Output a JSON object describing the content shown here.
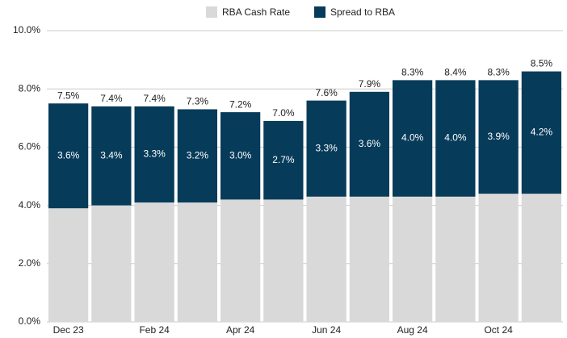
{
  "chart_data": {
    "type": "stacked_bar",
    "categories": [
      "Dec 23",
      null,
      "Feb 24",
      null,
      "Apr 24",
      null,
      "Jun 24",
      null,
      "Aug 24",
      null,
      "Oct 24",
      null
    ],
    "series": [
      {
        "name": "RBA Cash Rate",
        "color": "#d9d9d9",
        "values": [
          3.9,
          4.0,
          4.1,
          4.1,
          4.2,
          4.2,
          4.3,
          4.3,
          4.3,
          4.3,
          4.4,
          4.4
        ]
      },
      {
        "name": "Spread to RBA",
        "color": "#073b5a",
        "values": [
          3.6,
          3.4,
          3.3,
          3.2,
          3.0,
          2.7,
          3.3,
          3.6,
          4.0,
          4.0,
          3.9,
          4.2
        ],
        "value_labels": [
          "3.6%",
          "3.4%",
          "3.3%",
          "3.2%",
          "3.0%",
          "2.7%",
          "3.3%",
          "3.6%",
          "4.0%",
          "4.0%",
          "3.9%",
          "4.2%"
        ]
      }
    ],
    "total_labels": [
      "7.5%",
      "7.4%",
      "7.4%",
      "7.3%",
      "7.2%",
      "7.0%",
      "7.6%",
      "7.9%",
      "8.3%",
      "8.4%",
      "8.3%",
      "8.5%"
    ],
    "ylim": [
      0,
      10
    ],
    "yticks": [
      {
        "value": 0,
        "label": "0.0%"
      },
      {
        "value": 2,
        "label": "2.0%"
      },
      {
        "value": 4,
        "label": "4.0%"
      },
      {
        "value": 6,
        "label": "6.0%"
      },
      {
        "value": 8,
        "label": "8.0%"
      },
      {
        "value": 10,
        "label": "10.0%"
      }
    ],
    "grid": true,
    "legend": "top"
  }
}
